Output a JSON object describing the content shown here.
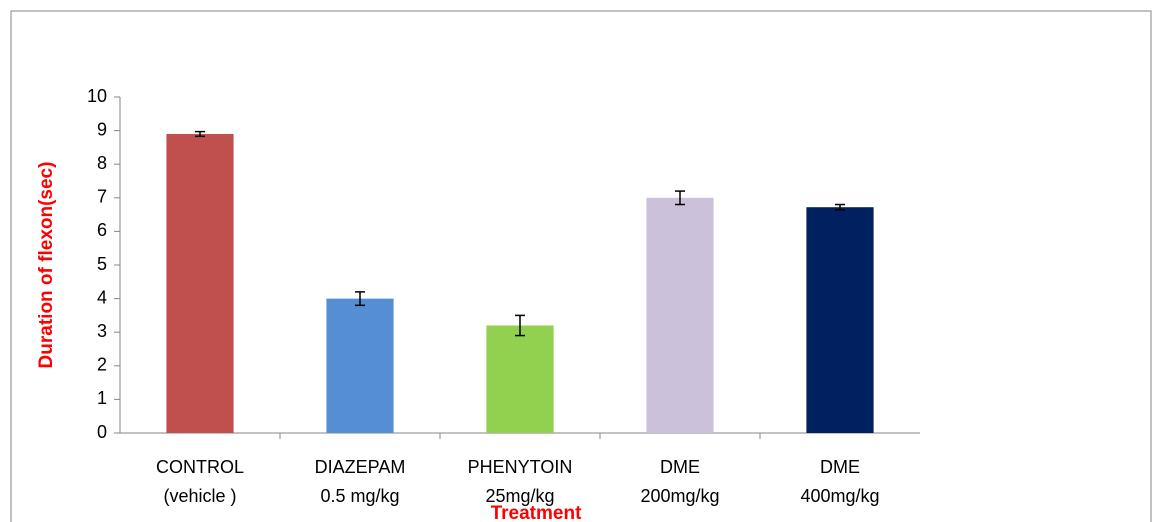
{
  "chart_data": {
    "type": "bar",
    "categories": [
      [
        "CONTROL",
        "(vehicle )"
      ],
      [
        "DIAZEPAM",
        "0.5 mg/kg"
      ],
      [
        "PHENYTOIN",
        "25mg/kg"
      ],
      [
        "DME",
        "200mg/kg"
      ],
      [
        "DME",
        "400mg/kg"
      ]
    ],
    "values": [
      8.9,
      4.0,
      3.2,
      7.0,
      6.72
    ],
    "errors": [
      0.07,
      0.2,
      0.3,
      0.2,
      0.08
    ],
    "colors": [
      "#c0504d",
      "#558ed5",
      "#92d050",
      "#ccc1da",
      "#002060"
    ],
    "xlabel": "Treatment",
    "ylabel": "Duration of flexon(sec)",
    "ylim": [
      0,
      10
    ],
    "yticks": [
      0,
      1,
      2,
      3,
      4,
      5,
      6,
      7,
      8,
      9,
      10
    ],
    "grid": false
  }
}
